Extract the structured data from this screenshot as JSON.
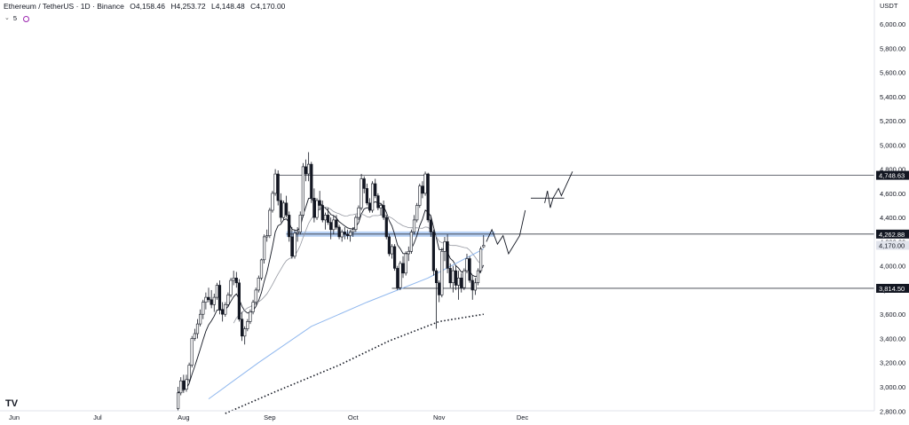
{
  "header": {
    "symbol": "Ethereum / TetherUS · 1D · Binance",
    "open": "O4,158.46",
    "high": "H4,253.72",
    "low": "L4,148.48",
    "close": "C4,170.00"
  },
  "indicators": {
    "count": "5",
    "collapse_icon": "chevron-down-icon",
    "status_icon": "circle-icon"
  },
  "axis": {
    "currency": "USDT",
    "price_ticks": [
      "6,000.00",
      "5,800.00",
      "5,600.00",
      "5,400.00",
      "5,200.00",
      "5,000.00",
      "4,800.00",
      "4,600.00",
      "4,400.00",
      "4,200.00",
      "4,000.00",
      "3,800.00",
      "3,600.00",
      "3,400.00",
      "3,200.00",
      "3,000.00",
      "2,800.00"
    ],
    "time_ticks": [
      "Jun",
      "Jul",
      "Aug",
      "Sep",
      "Oct",
      "Nov",
      "Dec"
    ]
  },
  "price_labels": [
    {
      "text": "4,748.63",
      "value": 4748.63,
      "style": "dark"
    },
    {
      "text": "4,262.88",
      "value": 4262.88,
      "style": "dark"
    },
    {
      "text": "4,170.00",
      "value": 4170.0,
      "style": "light"
    },
    {
      "text": "3,814.50",
      "value": 3814.5,
      "style": "dark"
    }
  ],
  "logo_text": "TV",
  "chart_data": {
    "type": "candlestick",
    "y_range": [
      2780,
      6100
    ],
    "x_range": [
      "2025-06-01",
      "2025-12-31"
    ],
    "horizontal_levels": [
      4748.63,
      4262.88,
      3814.5
    ],
    "candles": [
      {
        "d": "2025-07-30",
        "o": 2820,
        "h": 3000,
        "l": 2800,
        "c": 2950
      },
      {
        "d": "2025-07-31",
        "o": 2950,
        "h": 3080,
        "l": 2930,
        "c": 3050
      },
      {
        "d": "2025-08-01",
        "o": 3050,
        "h": 3100,
        "l": 2950,
        "c": 2980
      },
      {
        "d": "2025-08-02",
        "o": 2980,
        "h": 3100,
        "l": 2960,
        "c": 3060
      },
      {
        "d": "2025-08-03",
        "o": 3060,
        "h": 3200,
        "l": 3040,
        "c": 3180
      },
      {
        "d": "2025-08-04",
        "o": 3180,
        "h": 3420,
        "l": 3160,
        "c": 3400
      },
      {
        "d": "2025-08-05",
        "o": 3400,
        "h": 3480,
        "l": 3380,
        "c": 3440
      },
      {
        "d": "2025-08-06",
        "o": 3440,
        "h": 3560,
        "l": 3400,
        "c": 3520
      },
      {
        "d": "2025-08-07",
        "o": 3520,
        "h": 3640,
        "l": 3500,
        "c": 3600
      },
      {
        "d": "2025-08-08",
        "o": 3600,
        "h": 3720,
        "l": 3560,
        "c": 3700
      },
      {
        "d": "2025-08-09",
        "o": 3700,
        "h": 3780,
        "l": 3640,
        "c": 3740
      },
      {
        "d": "2025-08-10",
        "o": 3740,
        "h": 3820,
        "l": 3700,
        "c": 3720
      },
      {
        "d": "2025-08-11",
        "o": 3720,
        "h": 3800,
        "l": 3650,
        "c": 3680
      },
      {
        "d": "2025-08-12",
        "o": 3680,
        "h": 3770,
        "l": 3620,
        "c": 3740
      },
      {
        "d": "2025-08-13",
        "o": 3740,
        "h": 3860,
        "l": 3720,
        "c": 3840
      },
      {
        "d": "2025-08-14",
        "o": 3840,
        "h": 3880,
        "l": 3600,
        "c": 3640
      },
      {
        "d": "2025-08-15",
        "o": 3640,
        "h": 3700,
        "l": 3540,
        "c": 3600
      },
      {
        "d": "2025-08-16",
        "o": 3600,
        "h": 3700,
        "l": 3580,
        "c": 3680
      },
      {
        "d": "2025-08-17",
        "o": 3680,
        "h": 3780,
        "l": 3660,
        "c": 3760
      },
      {
        "d": "2025-08-18",
        "o": 3760,
        "h": 3900,
        "l": 3740,
        "c": 3880
      },
      {
        "d": "2025-08-19",
        "o": 3880,
        "h": 3960,
        "l": 3840,
        "c": 3900
      },
      {
        "d": "2025-08-20",
        "o": 3900,
        "h": 3950,
        "l": 3820,
        "c": 3860
      },
      {
        "d": "2025-08-21",
        "o": 3860,
        "h": 3890,
        "l": 3540,
        "c": 3560
      },
      {
        "d": "2025-08-22",
        "o": 3560,
        "h": 3620,
        "l": 3380,
        "c": 3420
      },
      {
        "d": "2025-08-23",
        "o": 3420,
        "h": 3500,
        "l": 3350,
        "c": 3480
      },
      {
        "d": "2025-08-24",
        "o": 3480,
        "h": 3560,
        "l": 3460,
        "c": 3540
      },
      {
        "d": "2025-08-25",
        "o": 3540,
        "h": 3640,
        "l": 3520,
        "c": 3620
      },
      {
        "d": "2025-08-26",
        "o": 3620,
        "h": 3720,
        "l": 3600,
        "c": 3700
      },
      {
        "d": "2025-08-27",
        "o": 3700,
        "h": 3820,
        "l": 3680,
        "c": 3800
      },
      {
        "d": "2025-08-28",
        "o": 3800,
        "h": 3920,
        "l": 3780,
        "c": 3900
      },
      {
        "d": "2025-08-29",
        "o": 3900,
        "h": 4060,
        "l": 3880,
        "c": 4050
      },
      {
        "d": "2025-08-30",
        "o": 4050,
        "h": 4260,
        "l": 4020,
        "c": 4240
      },
      {
        "d": "2025-08-31",
        "o": 4240,
        "h": 4300,
        "l": 4200,
        "c": 4250
      },
      {
        "d": "2025-09-01",
        "o": 4250,
        "h": 4480,
        "l": 4230,
        "c": 4460
      },
      {
        "d": "2025-09-02",
        "o": 4460,
        "h": 4620,
        "l": 4440,
        "c": 4600
      },
      {
        "d": "2025-09-03",
        "o": 4600,
        "h": 4800,
        "l": 4580,
        "c": 4760
      },
      {
        "d": "2025-09-04",
        "o": 4760,
        "h": 4790,
        "l": 4500,
        "c": 4540
      },
      {
        "d": "2025-09-05",
        "o": 4540,
        "h": 4600,
        "l": 4360,
        "c": 4400
      },
      {
        "d": "2025-09-06",
        "o": 4400,
        "h": 4540,
        "l": 4380,
        "c": 4520
      },
      {
        "d": "2025-09-07",
        "o": 4520,
        "h": 4580,
        "l": 4400,
        "c": 4420
      },
      {
        "d": "2025-09-08",
        "o": 4420,
        "h": 4450,
        "l": 4200,
        "c": 4240
      },
      {
        "d": "2025-09-09",
        "o": 4240,
        "h": 4320,
        "l": 4060,
        "c": 4080
      },
      {
        "d": "2025-09-10",
        "o": 4080,
        "h": 4300,
        "l": 4060,
        "c": 4270
      },
      {
        "d": "2025-09-11",
        "o": 4270,
        "h": 4320,
        "l": 4200,
        "c": 4280
      },
      {
        "d": "2025-09-12",
        "o": 4280,
        "h": 4450,
        "l": 4260,
        "c": 4420
      },
      {
        "d": "2025-09-13",
        "o": 4420,
        "h": 4850,
        "l": 4400,
        "c": 4820
      },
      {
        "d": "2025-09-14",
        "o": 4820,
        "h": 4880,
        "l": 4700,
        "c": 4760
      },
      {
        "d": "2025-09-15",
        "o": 4760,
        "h": 4940,
        "l": 4700,
        "c": 4840
      },
      {
        "d": "2025-09-16",
        "o": 4840,
        "h": 4860,
        "l": 4520,
        "c": 4560
      },
      {
        "d": "2025-09-17",
        "o": 4560,
        "h": 4640,
        "l": 4360,
        "c": 4400
      },
      {
        "d": "2025-09-18",
        "o": 4400,
        "h": 4560,
        "l": 4380,
        "c": 4540
      },
      {
        "d": "2025-09-19",
        "o": 4540,
        "h": 4620,
        "l": 4460,
        "c": 4500
      },
      {
        "d": "2025-09-20",
        "o": 4500,
        "h": 4540,
        "l": 4360,
        "c": 4380
      },
      {
        "d": "2025-09-21",
        "o": 4380,
        "h": 4440,
        "l": 4300,
        "c": 4420
      },
      {
        "d": "2025-09-22",
        "o": 4420,
        "h": 4480,
        "l": 4340,
        "c": 4360
      },
      {
        "d": "2025-09-23",
        "o": 4360,
        "h": 4400,
        "l": 4220,
        "c": 4300
      },
      {
        "d": "2025-09-24",
        "o": 4300,
        "h": 4420,
        "l": 4260,
        "c": 4380
      },
      {
        "d": "2025-09-25",
        "o": 4380,
        "h": 4420,
        "l": 4300,
        "c": 4320
      },
      {
        "d": "2025-09-26",
        "o": 4320,
        "h": 4340,
        "l": 4220,
        "c": 4240
      },
      {
        "d": "2025-09-27",
        "o": 4240,
        "h": 4300,
        "l": 4200,
        "c": 4280
      },
      {
        "d": "2025-09-28",
        "o": 4280,
        "h": 4320,
        "l": 4220,
        "c": 4260
      },
      {
        "d": "2025-09-29",
        "o": 4260,
        "h": 4300,
        "l": 4220,
        "c": 4250
      },
      {
        "d": "2025-09-30",
        "o": 4250,
        "h": 4300,
        "l": 4200,
        "c": 4280
      },
      {
        "d": "2025-10-01",
        "o": 4280,
        "h": 4320,
        "l": 4240,
        "c": 4300
      },
      {
        "d": "2025-10-02",
        "o": 4300,
        "h": 4420,
        "l": 4280,
        "c": 4400
      },
      {
        "d": "2025-10-03",
        "o": 4400,
        "h": 4500,
        "l": 4380,
        "c": 4480
      },
      {
        "d": "2025-10-04",
        "o": 4480,
        "h": 4760,
        "l": 4460,
        "c": 4720
      },
      {
        "d": "2025-10-05",
        "o": 4720,
        "h": 4740,
        "l": 4600,
        "c": 4640
      },
      {
        "d": "2025-10-06",
        "o": 4640,
        "h": 4680,
        "l": 4500,
        "c": 4520
      },
      {
        "d": "2025-10-07",
        "o": 4520,
        "h": 4560,
        "l": 4440,
        "c": 4460
      },
      {
        "d": "2025-10-08",
        "o": 4460,
        "h": 4700,
        "l": 4440,
        "c": 4680
      },
      {
        "d": "2025-10-09",
        "o": 4680,
        "h": 4720,
        "l": 4560,
        "c": 4580
      },
      {
        "d": "2025-10-10",
        "o": 4580,
        "h": 4600,
        "l": 4460,
        "c": 4480
      },
      {
        "d": "2025-10-11",
        "o": 4480,
        "h": 4520,
        "l": 4420,
        "c": 4500
      },
      {
        "d": "2025-10-12",
        "o": 4500,
        "h": 4540,
        "l": 4380,
        "c": 4400
      },
      {
        "d": "2025-10-13",
        "o": 4400,
        "h": 4420,
        "l": 4220,
        "c": 4240
      },
      {
        "d": "2025-10-14",
        "o": 4240,
        "h": 4260,
        "l": 4080,
        "c": 4100
      },
      {
        "d": "2025-10-15",
        "o": 4100,
        "h": 4180,
        "l": 4060,
        "c": 4160
      },
      {
        "d": "2025-10-16",
        "o": 4160,
        "h": 4180,
        "l": 3960,
        "c": 3980
      },
      {
        "d": "2025-10-17",
        "o": 3980,
        "h": 4000,
        "l": 3800,
        "c": 3820
      },
      {
        "d": "2025-10-18",
        "o": 3820,
        "h": 4040,
        "l": 3800,
        "c": 4020
      },
      {
        "d": "2025-10-19",
        "o": 4020,
        "h": 4080,
        "l": 3900,
        "c": 3940
      },
      {
        "d": "2025-10-20",
        "o": 3940,
        "h": 4120,
        "l": 3920,
        "c": 4100
      },
      {
        "d": "2025-10-21",
        "o": 4100,
        "h": 4160,
        "l": 4040,
        "c": 4120
      },
      {
        "d": "2025-10-22",
        "o": 4120,
        "h": 4300,
        "l": 4100,
        "c": 4280
      },
      {
        "d": "2025-10-23",
        "o": 4280,
        "h": 4420,
        "l": 4260,
        "c": 4380
      },
      {
        "d": "2025-10-24",
        "o": 4380,
        "h": 4520,
        "l": 4360,
        "c": 4500
      },
      {
        "d": "2025-10-25",
        "o": 4500,
        "h": 4680,
        "l": 4480,
        "c": 4660
      },
      {
        "d": "2025-10-26",
        "o": 4660,
        "h": 4700,
        "l": 4560,
        "c": 4600
      },
      {
        "d": "2025-10-27",
        "o": 4600,
        "h": 4780,
        "l": 4580,
        "c": 4760
      },
      {
        "d": "2025-10-28",
        "o": 4760,
        "h": 4770,
        "l": 4360,
        "c": 4380
      },
      {
        "d": "2025-10-29",
        "o": 4380,
        "h": 4420,
        "l": 4240,
        "c": 4280
      },
      {
        "d": "2025-10-30",
        "o": 4280,
        "h": 4300,
        "l": 3920,
        "c": 3960
      },
      {
        "d": "2025-10-31",
        "o": 3960,
        "h": 3980,
        "l": 3480,
        "c": 3860
      },
      {
        "d": "2025-11-01",
        "o": 3860,
        "h": 3880,
        "l": 3700,
        "c": 3760
      },
      {
        "d": "2025-11-02",
        "o": 3760,
        "h": 4150,
        "l": 3740,
        "c": 4120
      },
      {
        "d": "2025-11-03",
        "o": 4120,
        "h": 4240,
        "l": 4040,
        "c": 4200
      },
      {
        "d": "2025-11-04",
        "o": 4200,
        "h": 4260,
        "l": 3940,
        "c": 3980
      },
      {
        "d": "2025-11-05",
        "o": 3980,
        "h": 4020,
        "l": 3820,
        "c": 3860
      },
      {
        "d": "2025-11-06",
        "o": 3860,
        "h": 4000,
        "l": 3780,
        "c": 3960
      },
      {
        "d": "2025-11-07",
        "o": 3960,
        "h": 4000,
        "l": 3800,
        "c": 3840
      },
      {
        "d": "2025-11-08",
        "o": 3840,
        "h": 3960,
        "l": 3720,
        "c": 3900
      },
      {
        "d": "2025-11-09",
        "o": 3900,
        "h": 3940,
        "l": 3780,
        "c": 3820
      },
      {
        "d": "2025-11-10",
        "o": 3820,
        "h": 3980,
        "l": 3800,
        "c": 3960
      },
      {
        "d": "2025-11-11",
        "o": 3960,
        "h": 4100,
        "l": 3940,
        "c": 4060
      },
      {
        "d": "2025-11-12",
        "o": 4060,
        "h": 4080,
        "l": 3860,
        "c": 3880
      },
      {
        "d": "2025-11-13",
        "o": 3880,
        "h": 3920,
        "l": 3720,
        "c": 3800
      },
      {
        "d": "2025-11-14",
        "o": 3800,
        "h": 3900,
        "l": 3760,
        "c": 3860
      },
      {
        "d": "2025-11-15",
        "o": 3860,
        "h": 3980,
        "l": 3840,
        "c": 3960
      },
      {
        "d": "2025-11-16",
        "o": 3960,
        "h": 4160,
        "l": 3940,
        "c": 4140
      },
      {
        "d": "2025-11-17",
        "o": 4158.46,
        "h": 4253.72,
        "l": 4148.48,
        "c": 4170.0
      }
    ]
  }
}
